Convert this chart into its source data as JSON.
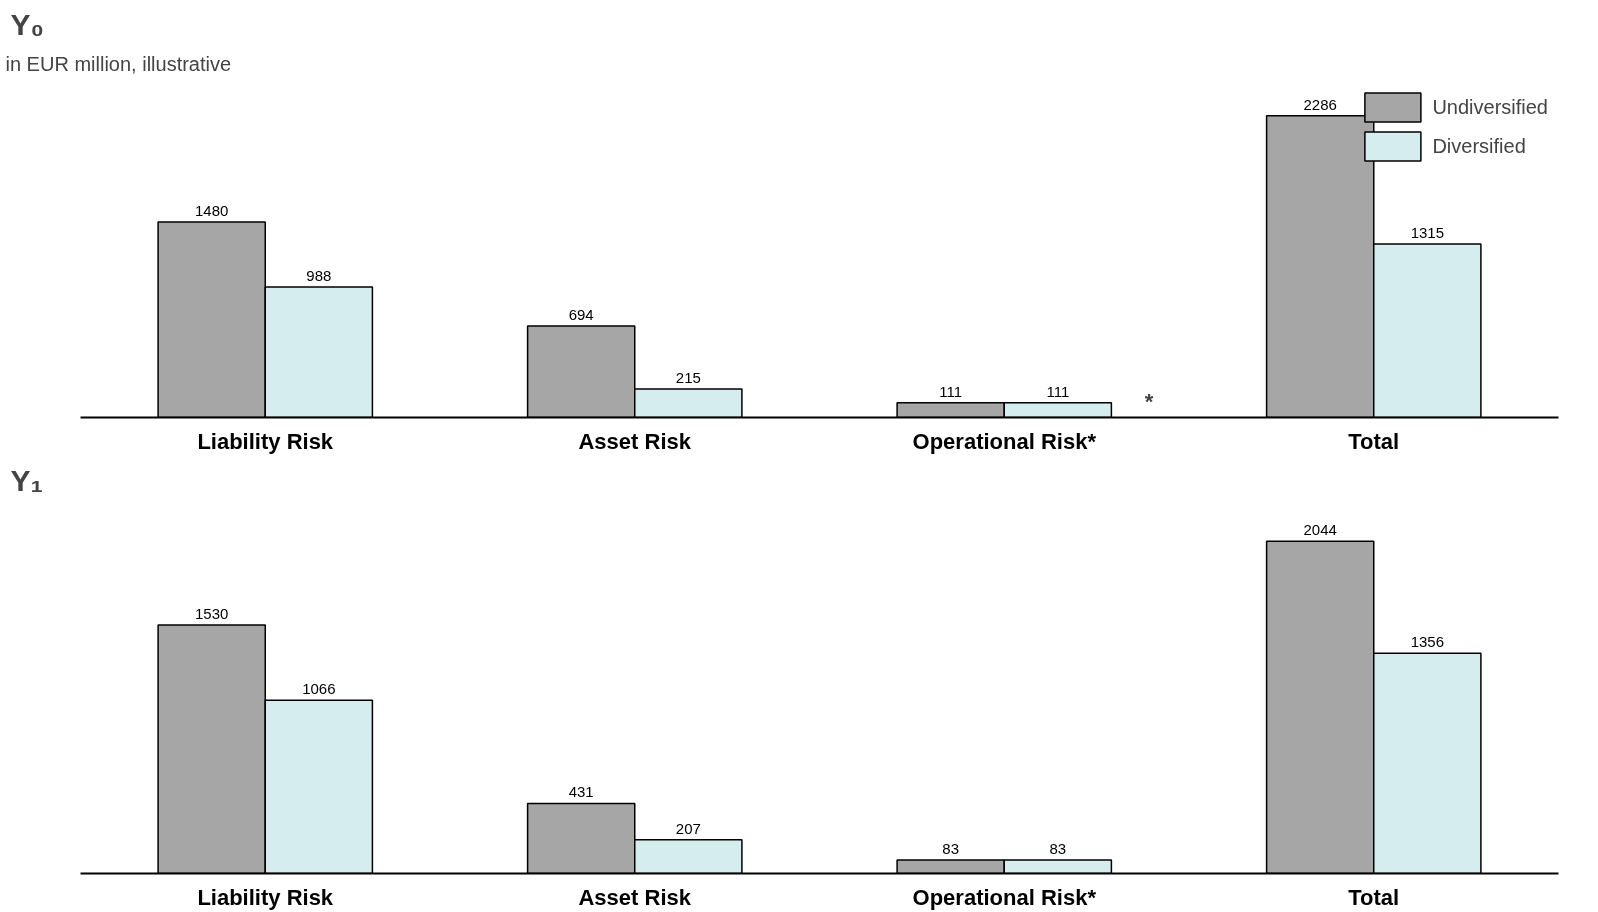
{
  "chart_data": [
    {
      "type": "bar",
      "title": "Y₀",
      "categories": [
        "Liability Risk",
        "Asset Risk",
        "Operational Risk*",
        "Total"
      ],
      "series": [
        {
          "name": "Undiversified",
          "color": "#a6a6a6",
          "values": [
            1480,
            694,
            111,
            2286
          ]
        },
        {
          "name": "Diversified",
          "color": "#d6edf0",
          "values": [
            988,
            215,
            111,
            1315
          ]
        }
      ],
      "data_labels": true,
      "legend": "top right",
      "grid": false,
      "tick_labels": "x",
      "annotations": [
        "in EUR million, illustrative",
        "*"
      ]
    },
    {
      "type": "bar",
      "title": "Y₁",
      "categories": [
        "Liability Risk",
        "Asset Risk",
        "Operational Risk*",
        "Total"
      ],
      "series": [
        {
          "color": "#a6a6a6",
          "values": [
            1530,
            431,
            83,
            2044
          ]
        },
        {
          "color": "#d6edf0",
          "values": [
            1066,
            207,
            83,
            1356
          ]
        }
      ],
      "data_labels": true,
      "legend": false,
      "grid": false,
      "tick_labels": "x"
    }
  ]
}
